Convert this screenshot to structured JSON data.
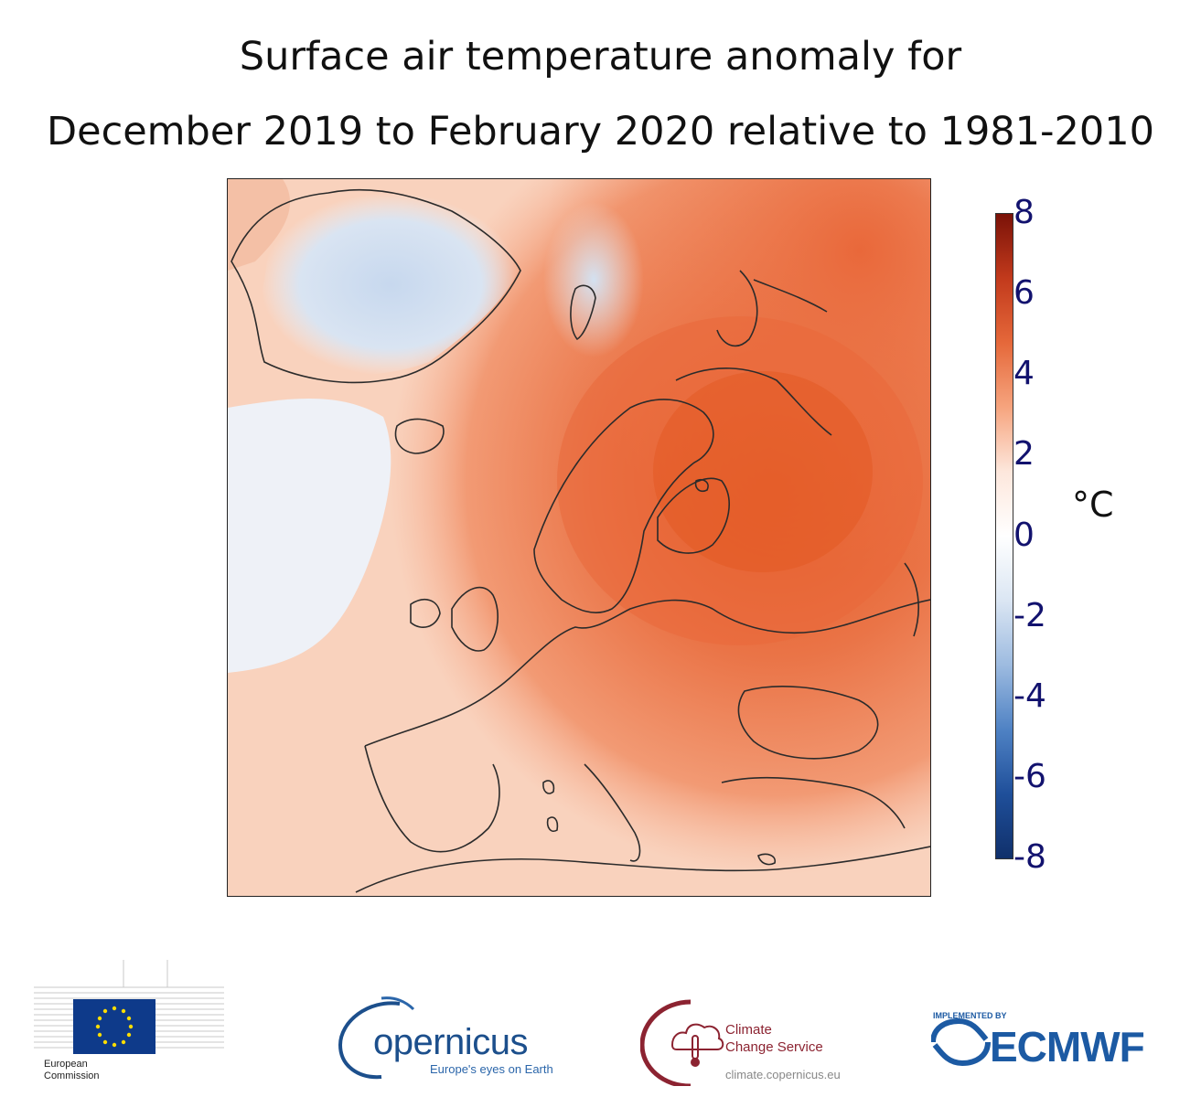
{
  "title": {
    "line1": "Surface air temperature anomaly for",
    "line2": "December 2019 to February 2020 relative to 1981-2010"
  },
  "map": {
    "region": "Europe",
    "variable": "Surface air temperature anomaly",
    "colors": {
      "strong_warm": "#e2571f",
      "warm": "#f08a5e",
      "mild_warm": "#f7b497",
      "slight_warm": "#fad6c3",
      "neutral": "#fbeee6",
      "slight_cool": "#eef3f9",
      "cool": "#d3e1f1",
      "coastline": "#2b2b2b"
    }
  },
  "colorbar": {
    "unit": "°C",
    "ticks": [
      "8",
      "6",
      "4",
      "2",
      "0",
      "-2",
      "-4",
      "-6",
      "-8"
    ],
    "range": [
      -8,
      8
    ],
    "colors": [
      "#7a1208",
      "#c23a1c",
      "#e5683a",
      "#f6a47e",
      "#fde7dc",
      "#ffffff",
      "#dbe6f3",
      "#9dbbe0",
      "#4f82c4",
      "#1f4f9a",
      "#10306b"
    ]
  },
  "logos": {
    "ec": {
      "line1": "European",
      "line2": "Commission",
      "icon": "eu-flag-icon"
    },
    "copernicus": {
      "name": "opernicus",
      "tagline": "Europe's eyes on Earth",
      "icon": "copernicus-c-icon"
    },
    "c3s": {
      "line1": "Climate",
      "line2": "Change Service",
      "url": "climate.copernicus.eu",
      "icon": "thermometer-cloud-icon"
    },
    "ecmwf": {
      "implemented_by": "IMPLEMENTED BY",
      "name": "ECMWF",
      "icon": "ecmwf-waves-icon"
    }
  }
}
